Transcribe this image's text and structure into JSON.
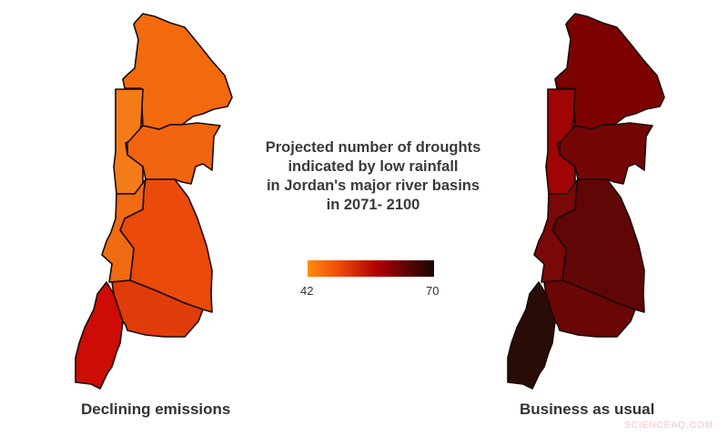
{
  "title": "Projected number of droughts indicated by low rainfall in Jordan's major river basins in 2071- 2100",
  "title_lines": [
    "Projected number of droughts",
    "indicated by low rainfall",
    "in Jordan's major river basins",
    "in 2071- 2100"
  ],
  "legend": {
    "min": "42",
    "max": "70",
    "colors": [
      "#ff8a10",
      "#b00000",
      "#1a0505"
    ]
  },
  "maps": [
    {
      "label": "Declining emissions",
      "region_colors": {
        "north": "#f26a0d",
        "valley": "#f47c18",
        "middle": "#f06410",
        "central": "#ea4a0a",
        "valley_south": "#f06a12",
        "south_middle": "#e03c0a",
        "southwest": "#cc0c05"
      }
    },
    {
      "label": "Business as usual",
      "region_colors": {
        "north": "#7c0202",
        "valley": "#a00404",
        "middle": "#740606",
        "central": "#600606",
        "valley_south": "#7a0808",
        "south_middle": "#6a0606",
        "southwest": "#2a0c06"
      }
    }
  ],
  "watermark": "SCIENCEAQ.COM"
}
